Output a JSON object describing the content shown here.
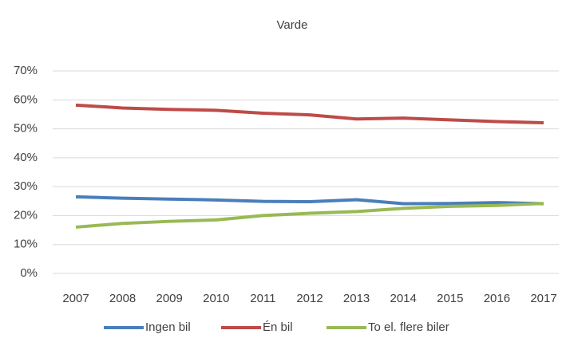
{
  "chart_data": {
    "type": "line",
    "title": "Varde",
    "categories": [
      "2007",
      "2008",
      "2009",
      "2010",
      "2011",
      "2012",
      "2013",
      "2014",
      "2015",
      "2016",
      "2017"
    ],
    "series": [
      {
        "name": "Ingen bil",
        "color": "#4a7ebb",
        "values": [
          26.5,
          26.0,
          25.7,
          25.4,
          24.9,
          24.8,
          25.5,
          24.1,
          24.2,
          24.5,
          24.1
        ]
      },
      {
        "name": "Én bil",
        "color": "#be4b48",
        "values": [
          58.2,
          57.2,
          56.7,
          56.4,
          55.4,
          54.8,
          53.4,
          53.7,
          53.1,
          52.5,
          52.1
        ]
      },
      {
        "name": "To el. flere biler",
        "color": "#98b954",
        "values": [
          16.0,
          17.3,
          18.0,
          18.5,
          20.0,
          20.8,
          21.4,
          22.5,
          23.2,
          23.5,
          24.2
        ]
      }
    ],
    "ylim": [
      0,
      70
    ],
    "yticks": [
      {
        "value": 0,
        "label": "0%"
      },
      {
        "value": 10,
        "label": "10%"
      },
      {
        "value": 20,
        "label": "20%"
      },
      {
        "value": 30,
        "label": "30%"
      },
      {
        "value": 40,
        "label": "40%"
      },
      {
        "value": 50,
        "label": "50%"
      },
      {
        "value": 60,
        "label": "60%"
      },
      {
        "value": 70,
        "label": "70%"
      }
    ],
    "grid": true
  }
}
